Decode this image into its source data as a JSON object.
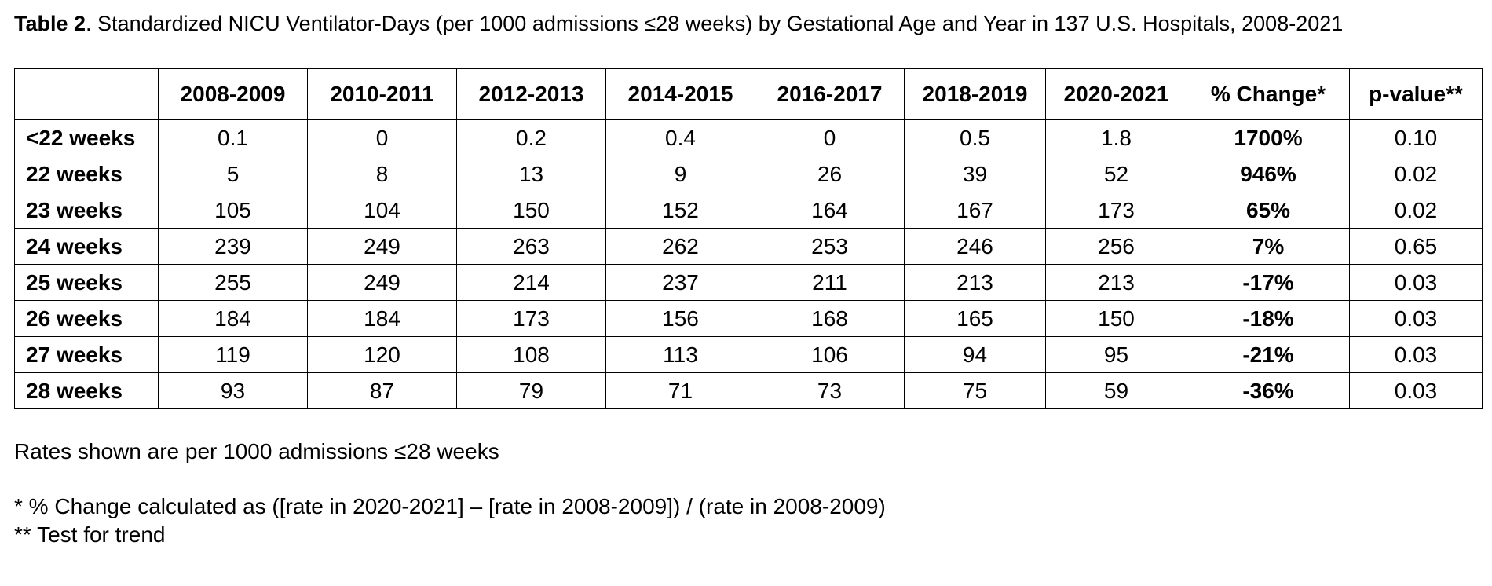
{
  "caption": {
    "label": "Table 2",
    "text": ". Standardized NICU Ventilator-Days (per 1000 admissions ≤28 weeks) by Gestational Age and Year in 137 U.S. Hospitals, 2008-2021"
  },
  "table": {
    "headers": [
      "",
      "2008-2009",
      "2010-2011",
      "2012-2013",
      "2014-2015",
      "2016-2017",
      "2018-2019",
      "2020-2021",
      "% Change*",
      "p-value**"
    ],
    "rows": [
      {
        "label": "<22 weeks",
        "values": [
          "0.1",
          "0",
          "0.2",
          "0.4",
          "0",
          "0.5",
          "1.8"
        ],
        "change": "1700%",
        "p": "0.10"
      },
      {
        "label": "22 weeks",
        "values": [
          "5",
          "8",
          "13",
          "9",
          "26",
          "39",
          "52"
        ],
        "change": "946%",
        "p": "0.02"
      },
      {
        "label": "23 weeks",
        "values": [
          "105",
          "104",
          "150",
          "152",
          "164",
          "167",
          "173"
        ],
        "change": "65%",
        "p": "0.02"
      },
      {
        "label": "24 weeks",
        "values": [
          "239",
          "249",
          "263",
          "262",
          "253",
          "246",
          "256"
        ],
        "change": "7%",
        "p": "0.65"
      },
      {
        "label": "25 weeks",
        "values": [
          "255",
          "249",
          "214",
          "237",
          "211",
          "213",
          "213"
        ],
        "change": "-17%",
        "p": "0.03"
      },
      {
        "label": "26 weeks",
        "values": [
          "184",
          "184",
          "173",
          "156",
          "168",
          "165",
          "150"
        ],
        "change": "-18%",
        "p": "0.03"
      },
      {
        "label": "27 weeks",
        "values": [
          "119",
          "120",
          "108",
          "113",
          "106",
          "94",
          "95"
        ],
        "change": "-21%",
        "p": "0.03"
      },
      {
        "label": "28 weeks",
        "values": [
          "93",
          "87",
          "79",
          "71",
          "73",
          "75",
          "59"
        ],
        "change": "-36%",
        "p": "0.03"
      }
    ]
  },
  "notes": {
    "rates": "Rates shown are per 1000 admissions ≤28 weeks",
    "change_def": "* % Change calculated as ([rate in 2020-2021] – [rate in 2008-2009]) / (rate in 2008-2009)",
    "trend": "** Test for trend"
  }
}
